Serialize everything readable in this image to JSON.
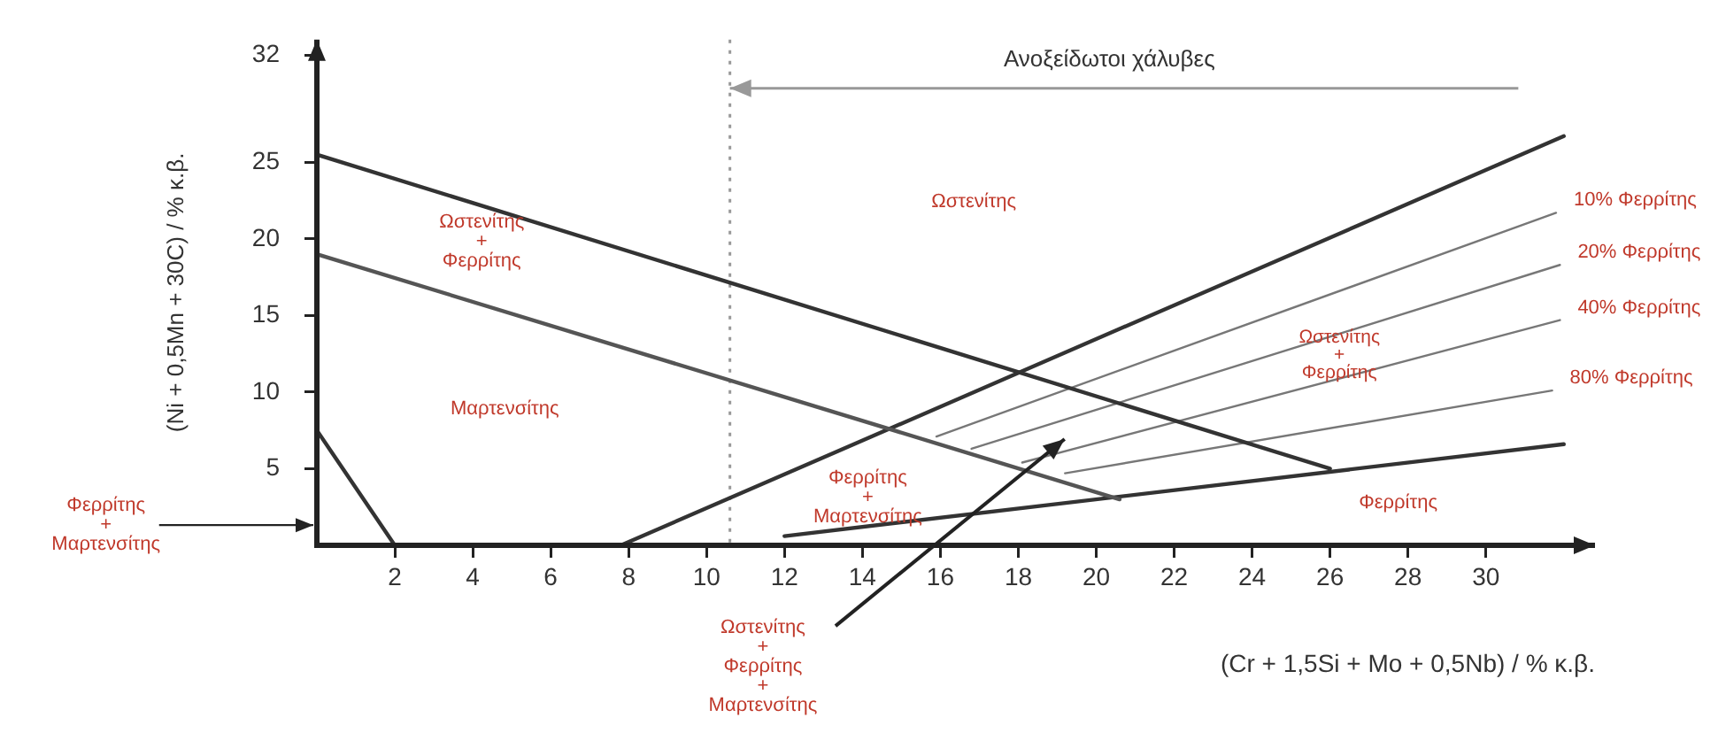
{
  "chart_data": {
    "type": "line",
    "xlabel": "(Cr + 1,5Si + Mo + 0,5Nb) / % κ.β.",
    "ylabel": "(Ni + 0,5Mn + 30C) / % κ.β.",
    "xlim": [
      0,
      32.8
    ],
    "ylim": [
      0,
      33
    ],
    "xticks": [
      2,
      4,
      6,
      8,
      10,
      12,
      14,
      16,
      18,
      20,
      22,
      24,
      26,
      28,
      30
    ],
    "yticks": [
      5,
      10,
      15,
      20,
      25,
      32
    ],
    "grid": false,
    "legend": false,
    "marker": "none",
    "line_style": "solid",
    "series": [
      {
        "color": "#333333",
        "x": [
          0,
          26
        ],
        "values": [
          25.5,
          5
        ]
      },
      {
        "color": "#555555",
        "x": [
          0,
          20.6
        ],
        "values": [
          19,
          3
        ]
      },
      {
        "color": "#333333",
        "x": [
          0,
          2
        ],
        "values": [
          7.5,
          0
        ]
      },
      {
        "color": "#333333",
        "x": [
          7.8,
          32
        ],
        "values": [
          0,
          26.7
        ]
      },
      {
        "color": "#333333",
        "x": [
          12,
          32
        ],
        "values": [
          0.6,
          6.6
        ]
      },
      {
        "name": "10% Φερρίτης",
        "color": "#777777",
        "x": [
          15.9,
          31.8
        ],
        "values": [
          7.1,
          21.7
        ]
      },
      {
        "name": "20% Φερρίτης",
        "color": "#777777",
        "x": [
          16.8,
          31.9
        ],
        "values": [
          6.3,
          18.3
        ]
      },
      {
        "name": "40% Φερρίτης",
        "color": "#777777",
        "x": [
          18.1,
          31.9
        ],
        "values": [
          5.4,
          14.7
        ]
      },
      {
        "name": "80% Φερρίτης",
        "color": "#777777",
        "x": [
          19.2,
          31.7
        ],
        "values": [
          4.7,
          10.1
        ]
      }
    ],
    "ref_lines": [
      {
        "axis": "x",
        "value": 10.6,
        "line_style": "dotted",
        "color": "#999999"
      }
    ],
    "annotations": [
      "Ωστενίτης",
      "Ωστενίτης\n+\nΦερρίτης",
      "Μαρτενσίτης",
      "Ωστενίτης\n+\nΦερρίτης",
      "Φερρίτης\n+\nΜαρτενσίτης",
      "Φερρίτης",
      "Φερρίτης\n+\nΜαρτενσίτης",
      "Ωστενίτης\n+\nΦερρίτης\n+\nΜαρτενσίτης",
      "Ανοξείδωτοι χάλυβες"
    ]
  }
}
